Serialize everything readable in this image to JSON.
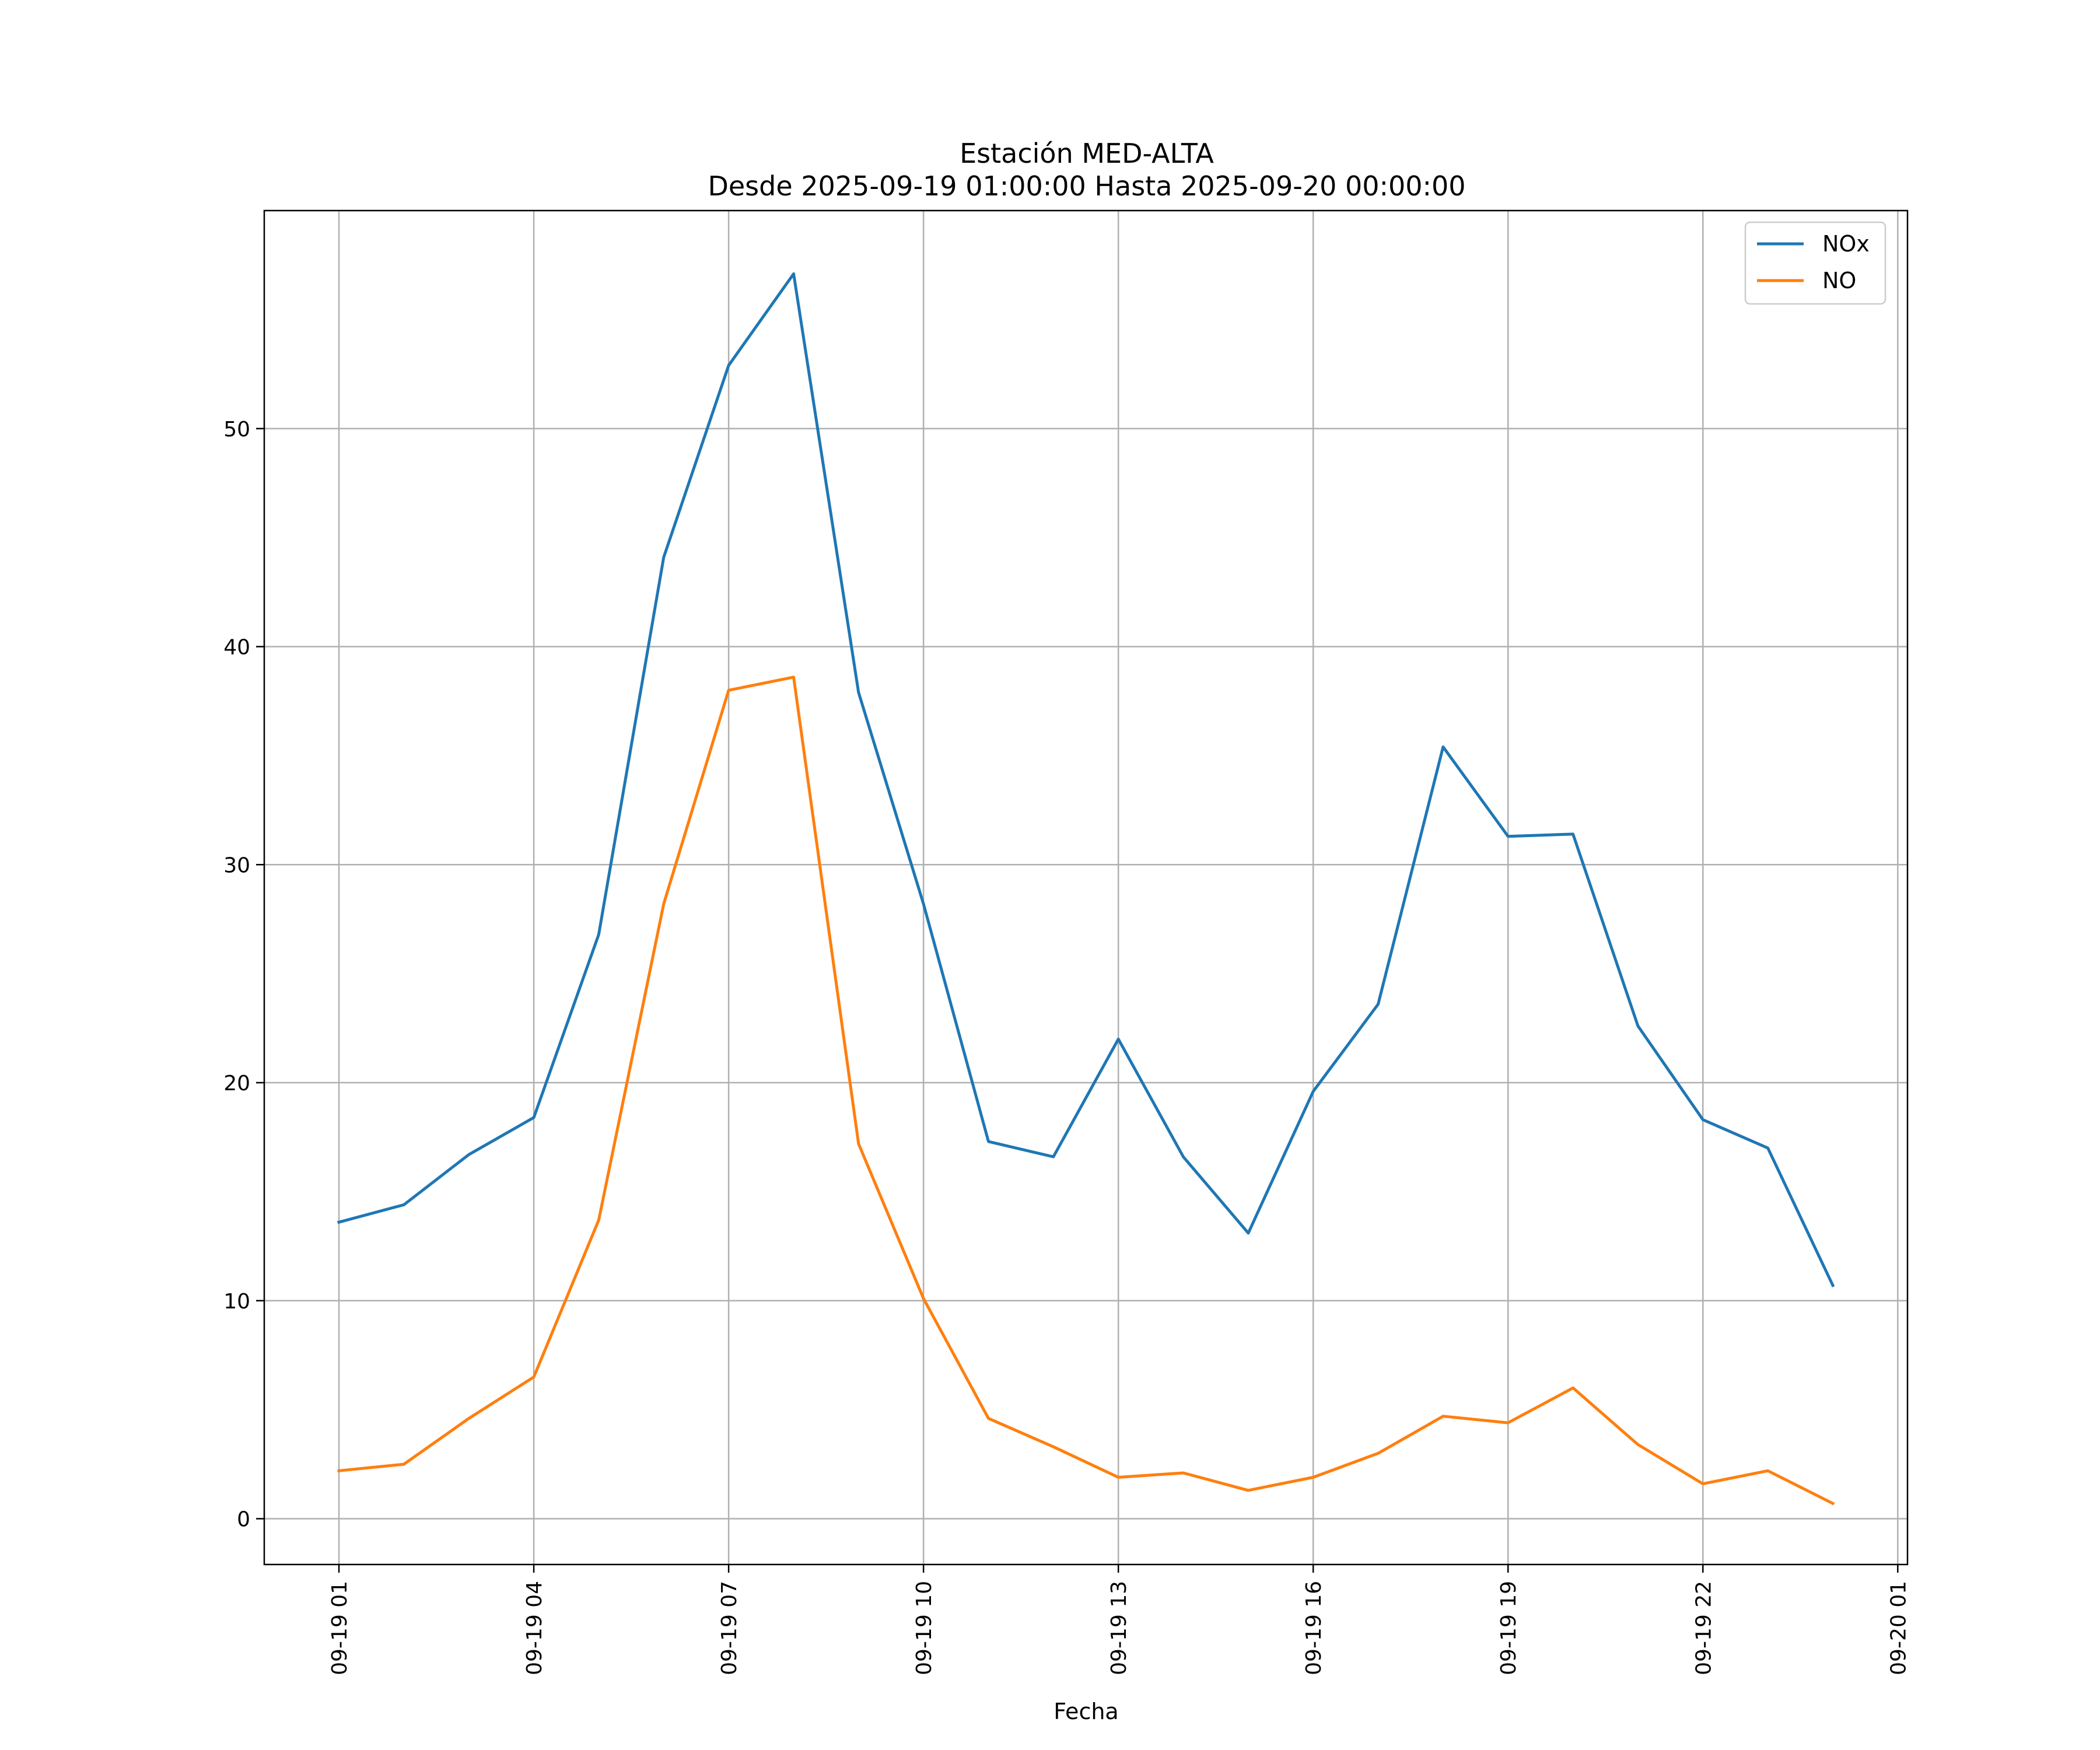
{
  "chart_data": {
    "type": "line",
    "title": "Estación MED-ALTA",
    "subtitle": "Desde 2025-09-19 01:00:00 Hasta 2025-09-20 00:00:00",
    "xlabel": "Fecha",
    "ylabel": "",
    "x": [
      "2025-09-19 01:00",
      "2025-09-19 02:00",
      "2025-09-19 03:00",
      "2025-09-19 04:00",
      "2025-09-19 05:00",
      "2025-09-19 06:00",
      "2025-09-19 07:00",
      "2025-09-19 08:00",
      "2025-09-19 09:00",
      "2025-09-19 10:00",
      "2025-09-19 11:00",
      "2025-09-19 12:00",
      "2025-09-19 13:00",
      "2025-09-19 14:00",
      "2025-09-19 15:00",
      "2025-09-19 16:00",
      "2025-09-19 17:00",
      "2025-09-19 18:00",
      "2025-09-19 19:00",
      "2025-09-19 20:00",
      "2025-09-19 21:00",
      "2025-09-19 22:00",
      "2025-09-19 23:00",
      "2025-09-20 00:00"
    ],
    "x_tick_labels": [
      "09-19 01",
      "09-19 04",
      "09-19 07",
      "09-19 10",
      "09-19 13",
      "09-19 16",
      "09-19 19",
      "09-19 22",
      "09-20 01"
    ],
    "x_tick_values": [
      "2025-09-19 01:00",
      "2025-09-19 04:00",
      "2025-09-19 07:00",
      "2025-09-19 10:00",
      "2025-09-19 13:00",
      "2025-09-19 16:00",
      "2025-09-19 19:00",
      "2025-09-19 22:00",
      "2025-09-20 01:00"
    ],
    "xlim": [
      "2025-09-18 23:51",
      "2025-09-20 01:09"
    ],
    "ylim": [
      -2.1,
      60
    ],
    "y_ticks": [
      0,
      10,
      20,
      30,
      40,
      50
    ],
    "grid": true,
    "legend_position": "top-right",
    "series": [
      {
        "name": "NOx",
        "color": "#1f77b4",
        "values": [
          13.6,
          14.4,
          16.7,
          18.4,
          26.8,
          44.1,
          52.9,
          57.1,
          37.9,
          28.2,
          17.3,
          16.6,
          22.0,
          16.6,
          13.1,
          19.6,
          23.6,
          35.4,
          31.3,
          31.4,
          22.6,
          18.3,
          17.0,
          10.7
        ]
      },
      {
        "name": "NO",
        "color": "#ff7f0e",
        "values": [
          2.2,
          2.5,
          4.6,
          6.5,
          13.7,
          28.2,
          38.0,
          38.6,
          17.2,
          10.1,
          4.6,
          3.3,
          1.9,
          2.1,
          1.3,
          1.9,
          3.0,
          4.7,
          4.4,
          6.0,
          3.4,
          1.6,
          2.2,
          0.7
        ]
      }
    ]
  }
}
